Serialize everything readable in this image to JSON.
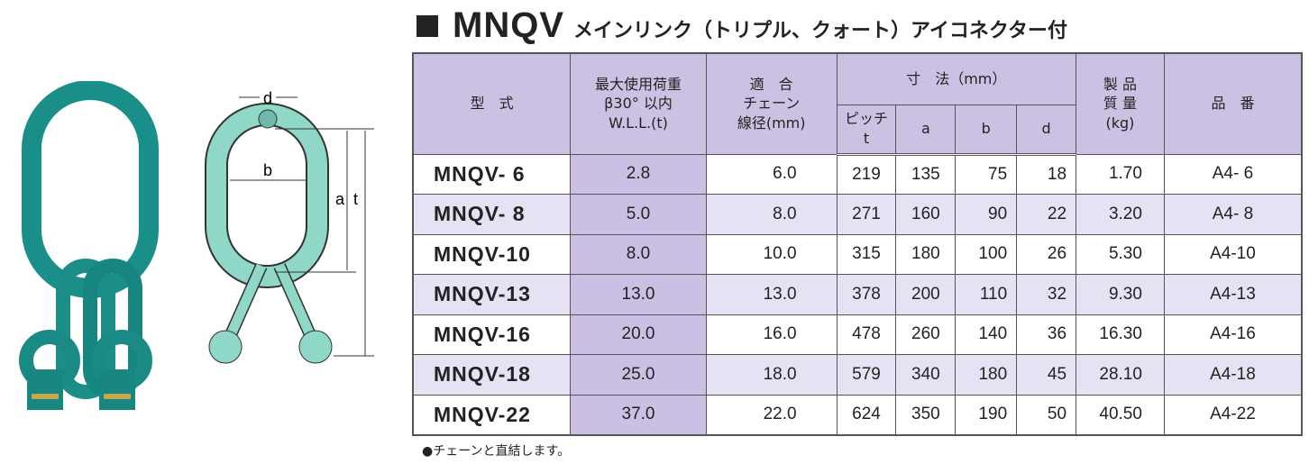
{
  "title": {
    "model": "MNQV",
    "description": "メインリンク（トリプル、クォート）アイコネクター付"
  },
  "diagram": {
    "labels": {
      "d": "d",
      "b": "b",
      "a": "a",
      "t": "t"
    }
  },
  "table": {
    "headers": {
      "model": "型　式",
      "wll": [
        "最大使用荷重",
        "β30° 以内",
        "W.L.L.(t)"
      ],
      "chain": [
        "適　合",
        "チェーン",
        "線径(mm)"
      ],
      "dims": "寸　法（mm）",
      "pitch": [
        "ピッチ",
        "t"
      ],
      "a": "a",
      "b": "b",
      "d": "d",
      "weight": [
        "製 品",
        "質 量",
        "(kg)"
      ],
      "part": "品　番"
    },
    "rows": [
      {
        "model": "MNQV- 6",
        "wll": "2.8",
        "chain": "6.0",
        "t": "219",
        "a": "135",
        "b": "75",
        "d": "18",
        "weight": "1.70",
        "part": "A4- 6"
      },
      {
        "model": "MNQV- 8",
        "wll": "5.0",
        "chain": "8.0",
        "t": "271",
        "a": "160",
        "b": "90",
        "d": "22",
        "weight": "3.20",
        "part": "A4- 8"
      },
      {
        "model": "MNQV-10",
        "wll": "8.0",
        "chain": "10.0",
        "t": "315",
        "a": "180",
        "b": "100",
        "d": "26",
        "weight": "5.30",
        "part": "A4-10"
      },
      {
        "model": "MNQV-13",
        "wll": "13.0",
        "chain": "13.0",
        "t": "378",
        "a": "200",
        "b": "110",
        "d": "32",
        "weight": "9.30",
        "part": "A4-13"
      },
      {
        "model": "MNQV-16",
        "wll": "20.0",
        "chain": "16.0",
        "t": "478",
        "a": "260",
        "b": "140",
        "d": "36",
        "weight": "16.30",
        "part": "A4-16"
      },
      {
        "model": "MNQV-18",
        "wll": "25.0",
        "chain": "18.0",
        "t": "579",
        "a": "340",
        "b": "180",
        "d": "45",
        "weight": "28.10",
        "part": "A4-18"
      },
      {
        "model": "MNQV-22",
        "wll": "37.0",
        "chain": "22.0",
        "t": "624",
        "a": "350",
        "b": "190",
        "d": "50",
        "weight": "40.50",
        "part": "A4-22"
      }
    ]
  },
  "note": "●チェーンと直結します。"
}
